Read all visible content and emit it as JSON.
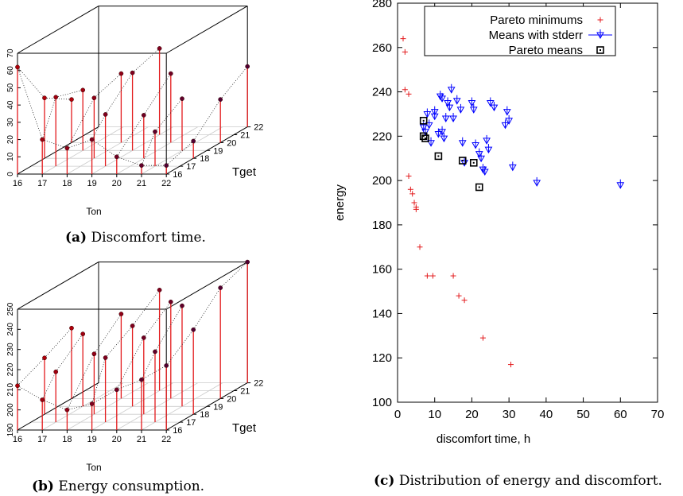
{
  "captions": {
    "a": {
      "tag": "(a)",
      "text": " Discomfort time."
    },
    "b": {
      "tag": "(b)",
      "text": " Energy consumption."
    },
    "c": {
      "tag": "(c)",
      "text": " Distribution of energy and discomfort."
    }
  },
  "chart_data": [
    {
      "id": "a",
      "type": "scatter",
      "title": "",
      "xlabel": "Ton",
      "ylabel": "Tget",
      "zlabel": "",
      "x_ticks": [
        "16",
        "17",
        "18",
        "19",
        "20",
        "21",
        "22"
      ],
      "y_ticks": [
        "16",
        "17",
        "18",
        "19",
        "20",
        "21",
        "22"
      ],
      "z_ticks": [
        "0",
        "10",
        "20",
        "30",
        "40",
        "50",
        "60",
        "70"
      ],
      "xlim": [
        16,
        22
      ],
      "ylim": [
        16,
        22
      ],
      "zlim": [
        0,
        70
      ],
      "points": [
        {
          "x": 16,
          "y": 16,
          "z": 62
        },
        {
          "x": 16,
          "y": 18,
          "z": 35
        },
        {
          "x": 16,
          "y": 20,
          "z": 25
        },
        {
          "x": 17,
          "y": 16,
          "z": 20
        },
        {
          "x": 17,
          "y": 17,
          "z": 40
        },
        {
          "x": 17,
          "y": 19,
          "z": 35
        },
        {
          "x": 18,
          "y": 16,
          "z": 15
        },
        {
          "x": 18,
          "y": 18,
          "z": 35
        },
        {
          "x": 18,
          "y": 20,
          "z": 40
        },
        {
          "x": 19,
          "y": 16,
          "z": 20
        },
        {
          "x": 19,
          "y": 17,
          "z": 30
        },
        {
          "x": 19,
          "y": 19,
          "z": 45
        },
        {
          "x": 19,
          "y": 21,
          "z": 50
        },
        {
          "x": 20,
          "y": 16,
          "z": 10
        },
        {
          "x": 20,
          "y": 18,
          "z": 25
        },
        {
          "x": 20,
          "y": 20,
          "z": 40
        },
        {
          "x": 21,
          "y": 16,
          "z": 5
        },
        {
          "x": 21,
          "y": 17,
          "z": 20
        },
        {
          "x": 21,
          "y": 19,
          "z": 30
        },
        {
          "x": 22,
          "y": 16,
          "z": 5
        },
        {
          "x": 22,
          "y": 18,
          "z": 10
        },
        {
          "x": 22,
          "y": 20,
          "z": 25
        },
        {
          "x": 22,
          "y": 22,
          "z": 35
        }
      ]
    },
    {
      "id": "b",
      "type": "scatter",
      "title": "",
      "xlabel": "Ton",
      "ylabel": "Tget",
      "zlabel": "",
      "x_ticks": [
        "16",
        "17",
        "18",
        "19",
        "20",
        "21",
        "22"
      ],
      "y_ticks": [
        "16",
        "17",
        "18",
        "19",
        "20",
        "21",
        "22"
      ],
      "z_ticks": [
        "190",
        "200",
        "210",
        "220",
        "230",
        "240",
        "250"
      ],
      "xlim": [
        16,
        22
      ],
      "ylim": [
        16,
        22
      ],
      "zlim": [
        190,
        250
      ],
      "points": [
        {
          "x": 16,
          "y": 16,
          "z": 212
        },
        {
          "x": 16,
          "y": 18,
          "z": 218
        },
        {
          "x": 16,
          "y": 20,
          "z": 225
        },
        {
          "x": 17,
          "y": 16,
          "z": 205
        },
        {
          "x": 17,
          "y": 17,
          "z": 215
        },
        {
          "x": 17,
          "y": 19,
          "z": 226
        },
        {
          "x": 18,
          "y": 16,
          "z": 200
        },
        {
          "x": 18,
          "y": 18,
          "z": 220
        },
        {
          "x": 18,
          "y": 20,
          "z": 232
        },
        {
          "x": 19,
          "y": 16,
          "z": 203
        },
        {
          "x": 19,
          "y": 17,
          "z": 222
        },
        {
          "x": 19,
          "y": 19,
          "z": 230
        },
        {
          "x": 19,
          "y": 21,
          "z": 240
        },
        {
          "x": 20,
          "y": 16,
          "z": 210
        },
        {
          "x": 20,
          "y": 18,
          "z": 228
        },
        {
          "x": 20,
          "y": 20,
          "z": 238
        },
        {
          "x": 21,
          "y": 16,
          "z": 215
        },
        {
          "x": 21,
          "y": 17,
          "z": 225
        },
        {
          "x": 21,
          "y": 19,
          "z": 240
        },
        {
          "x": 22,
          "y": 16,
          "z": 222
        },
        {
          "x": 22,
          "y": 18,
          "z": 232
        },
        {
          "x": 22,
          "y": 20,
          "z": 245
        },
        {
          "x": 22,
          "y": 22,
          "z": 250
        }
      ]
    },
    {
      "id": "c",
      "type": "scatter",
      "title": "",
      "xlabel": "discomfort time, h",
      "ylabel": "energy",
      "xlim": [
        0,
        70
      ],
      "ylim": [
        100,
        280
      ],
      "x_ticks": [
        "0",
        "10",
        "20",
        "30",
        "40",
        "50",
        "60",
        "70"
      ],
      "y_ticks": [
        "100",
        "120",
        "140",
        "160",
        "180",
        "200",
        "220",
        "240",
        "260",
        "280"
      ],
      "legend_position": "top-right",
      "series": [
        {
          "name": "Pareto minimums",
          "marker": "plus",
          "color": "#e31a1c",
          "points": [
            [
              1.5,
              264
            ],
            [
              2,
              258
            ],
            [
              2,
              241
            ],
            [
              3,
              239
            ],
            [
              3,
              202
            ],
            [
              3.5,
              196
            ],
            [
              4,
              194
            ],
            [
              4.5,
              190
            ],
            [
              5,
              188
            ],
            [
              5,
              187
            ],
            [
              6,
              170
            ],
            [
              8,
              157
            ],
            [
              9.5,
              157
            ],
            [
              15,
              157
            ],
            [
              16.5,
              148
            ],
            [
              18,
              146
            ],
            [
              23,
              129
            ],
            [
              30.5,
              117
            ]
          ]
        },
        {
          "name": "Means with stderr",
          "marker": "triangle-down",
          "color": "#0000ff",
          "points": [
            [
              7,
              224
            ],
            [
              7.5,
              222
            ],
            [
              8,
              230
            ],
            [
              8.5,
              225
            ],
            [
              9,
              217
            ],
            [
              10,
              231
            ],
            [
              10,
              229
            ],
            [
              11,
              221
            ],
            [
              11.5,
              238
            ],
            [
              12,
              237
            ],
            [
              12,
              222
            ],
            [
              12.5,
              219
            ],
            [
              13,
              228
            ],
            [
              13.5,
              235
            ],
            [
              14,
              233
            ],
            [
              14.5,
              241
            ],
            [
              15,
              228
            ],
            [
              16,
              236
            ],
            [
              17,
              232
            ],
            [
              17.5,
              217
            ],
            [
              18,
              208
            ],
            [
              20,
              235
            ],
            [
              20.5,
              232
            ],
            [
              21,
              216
            ],
            [
              22,
              212
            ],
            [
              22.5,
              210
            ],
            [
              23,
              205
            ],
            [
              23.5,
              204
            ],
            [
              24,
              218
            ],
            [
              24.5,
              214
            ],
            [
              25,
              235
            ],
            [
              26,
              233
            ],
            [
              29,
              225
            ],
            [
              29.5,
              231
            ],
            [
              30,
              227
            ],
            [
              31,
              206
            ],
            [
              37.5,
              199
            ],
            [
              60,
              198
            ]
          ]
        },
        {
          "name": "Pareto means",
          "marker": "square-dot",
          "color": "#000000",
          "points": [
            [
              7,
              227
            ],
            [
              7,
              220
            ],
            [
              7.5,
              219
            ],
            [
              11,
              211
            ],
            [
              17.5,
              209
            ],
            [
              20.5,
              208
            ],
            [
              22,
              197
            ]
          ]
        }
      ]
    }
  ]
}
